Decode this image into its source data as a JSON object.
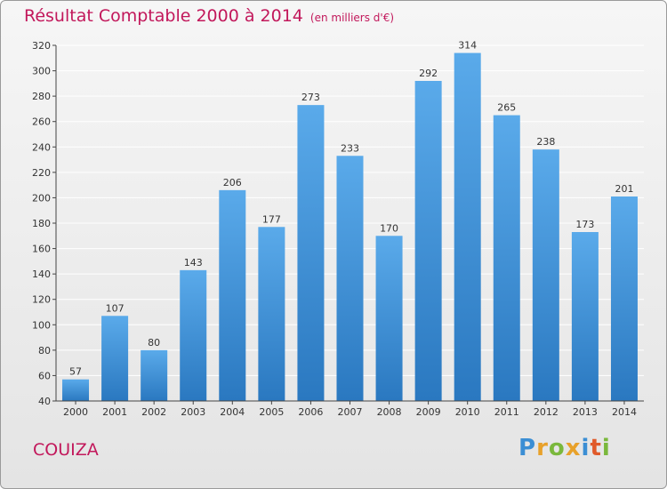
{
  "title": "Résultat Comptable 2000 à 2014",
  "subtitle": "(en milliers d'€)",
  "city": "COUIZA",
  "brand": {
    "text": "Proxiti",
    "letters": [
      {
        "ch": "P",
        "color": "#3b8ed4"
      },
      {
        "ch": "r",
        "color": "#e8a12a"
      },
      {
        "ch": "o",
        "color": "#7ab83c"
      },
      {
        "ch": "x",
        "color": "#e8a12a"
      },
      {
        "ch": "i",
        "color": "#3b8ed4"
      },
      {
        "ch": "t",
        "color": "#e05a2a"
      },
      {
        "ch": "i",
        "color": "#7ab83c"
      }
    ]
  },
  "colors": {
    "accent": "#c2185b",
    "bar_top": "#5aaaea",
    "bar_bottom": "#2a78c0"
  },
  "chart_data": {
    "type": "bar",
    "categories": [
      "2000",
      "2001",
      "2002",
      "2003",
      "2004",
      "2005",
      "2006",
      "2007",
      "2008",
      "2009",
      "2010",
      "2011",
      "2012",
      "2013",
      "2014"
    ],
    "values": [
      57,
      107,
      80,
      143,
      206,
      177,
      273,
      233,
      170,
      292,
      314,
      265,
      238,
      173,
      201
    ],
    "yticks": [
      40,
      60,
      80,
      100,
      120,
      140,
      160,
      180,
      200,
      220,
      240,
      260,
      280,
      300,
      320
    ],
    "ylim": [
      40,
      320
    ],
    "grid": true
  }
}
